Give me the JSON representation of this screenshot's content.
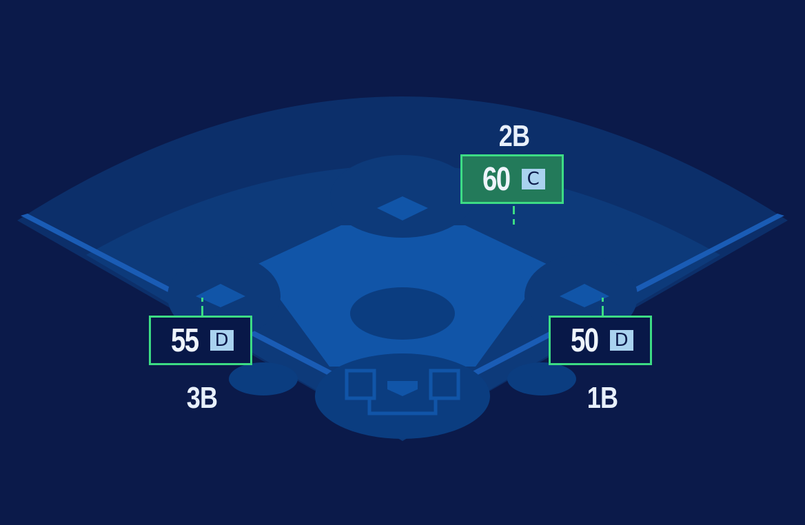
{
  "colors": {
    "background": "#0b1a4a",
    "outfield_outer": "#0c2f6a",
    "outfield": "#0d3a7a",
    "infield": "#1155a8",
    "dirt_dark": "#0b3d80",
    "highlight_border": "#3ddc84",
    "highlight_fill": "#237a5a",
    "grade_bg": "#a9d2ef"
  },
  "positions": [
    {
      "label": "2B",
      "value": "60",
      "grade": "C",
      "highlighted": true
    },
    {
      "label": "3B",
      "value": "55",
      "grade": "D",
      "highlighted": false
    },
    {
      "label": "1B",
      "value": "50",
      "grade": "D",
      "highlighted": false
    }
  ]
}
